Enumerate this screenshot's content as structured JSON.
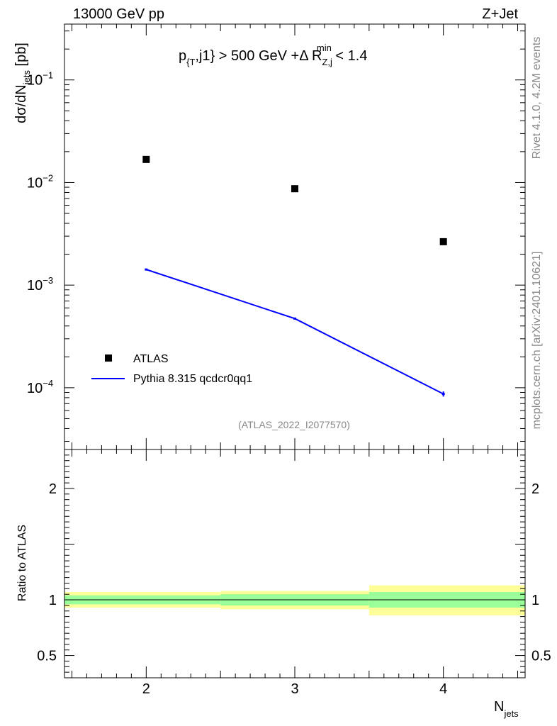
{
  "header": {
    "left": "13000 GeV pp",
    "right": "Z+Jet"
  },
  "plot_title": {
    "p": "p",
    "sub1": "{T",
    "mid1": ",j1} > 500 GeV +Δ R",
    "sub2": "Z,j",
    "sup2": "min",
    "tail": " < 1.4"
  },
  "side_labels": {
    "rivet": "Rivet 4.1.0,  4.2M events",
    "mcplots": "mcplots.cern.ch [arXiv:2401.10621]"
  },
  "analysis_id": "(ATLAS_2022_I2077570)",
  "colors": {
    "data": "#000000",
    "mc": "#0000ff",
    "band_inner": "#99ff99",
    "band_outer": "#ffff99",
    "watermark": "#888888"
  },
  "chart_data": [
    {
      "type": "line",
      "title": "p_{T},j1} > 500 GeV +Δ R_{Z,j}^{min} < 1.4",
      "ylabel": {
        "main": "dσ/dN",
        "sub": "jets",
        "unit": " [pb]"
      },
      "yscale": "log",
      "ylim": [
        2.5e-05,
        0.35
      ],
      "xlim": [
        1.45,
        4.55
      ],
      "y_ticks": [
        {
          "value": 0.1,
          "label": "10",
          "exp": "−1"
        },
        {
          "value": 0.01,
          "label": "10",
          "exp": "−2"
        },
        {
          "value": 0.001,
          "label": "10",
          "exp": "−3"
        },
        {
          "value": 0.0001,
          "label": "10",
          "exp": "−4"
        }
      ],
      "legend": {
        "position": "bottom-left"
      },
      "series": [
        {
          "name": "ATLAS",
          "style": "markers",
          "x": [
            2,
            3,
            4
          ],
          "values": [
            0.0168,
            0.0087,
            0.00265
          ]
        },
        {
          "name": "Pythia 8.315 qcdcr0qq1",
          "style": "line",
          "x": [
            2,
            3,
            4
          ],
          "values": [
            0.00142,
            0.000472,
            8.7e-05
          ],
          "errors": [
            2e-05,
            8e-06,
            5e-06
          ]
        }
      ]
    },
    {
      "type": "area",
      "ylabel": "Ratio to ATLAS",
      "ylim": [
        0.3,
        2.35
      ],
      "y_ticks": [
        {
          "value": 2,
          "label": "2"
        },
        {
          "value": 1,
          "label": "1"
        },
        {
          "value": 0.5,
          "label": "0.5"
        }
      ],
      "xlabel": {
        "main": "N",
        "sub": "jets"
      },
      "x_ticks": [
        {
          "value": 2,
          "label": "2"
        },
        {
          "value": 3,
          "label": "3"
        },
        {
          "value": 4,
          "label": "4"
        }
      ],
      "reference": 1,
      "bands": [
        {
          "x_low": 1.45,
          "x_high": 2.5,
          "inner": [
            0.96,
            1.04
          ],
          "outer": [
            0.93,
            1.07
          ]
        },
        {
          "x_low": 2.5,
          "x_high": 3.5,
          "inner": [
            0.95,
            1.05
          ],
          "outer": [
            0.915,
            1.08
          ]
        },
        {
          "x_low": 3.5,
          "x_high": 4.55,
          "inner": [
            0.93,
            1.07
          ],
          "outer": [
            0.86,
            1.13
          ]
        }
      ]
    }
  ]
}
